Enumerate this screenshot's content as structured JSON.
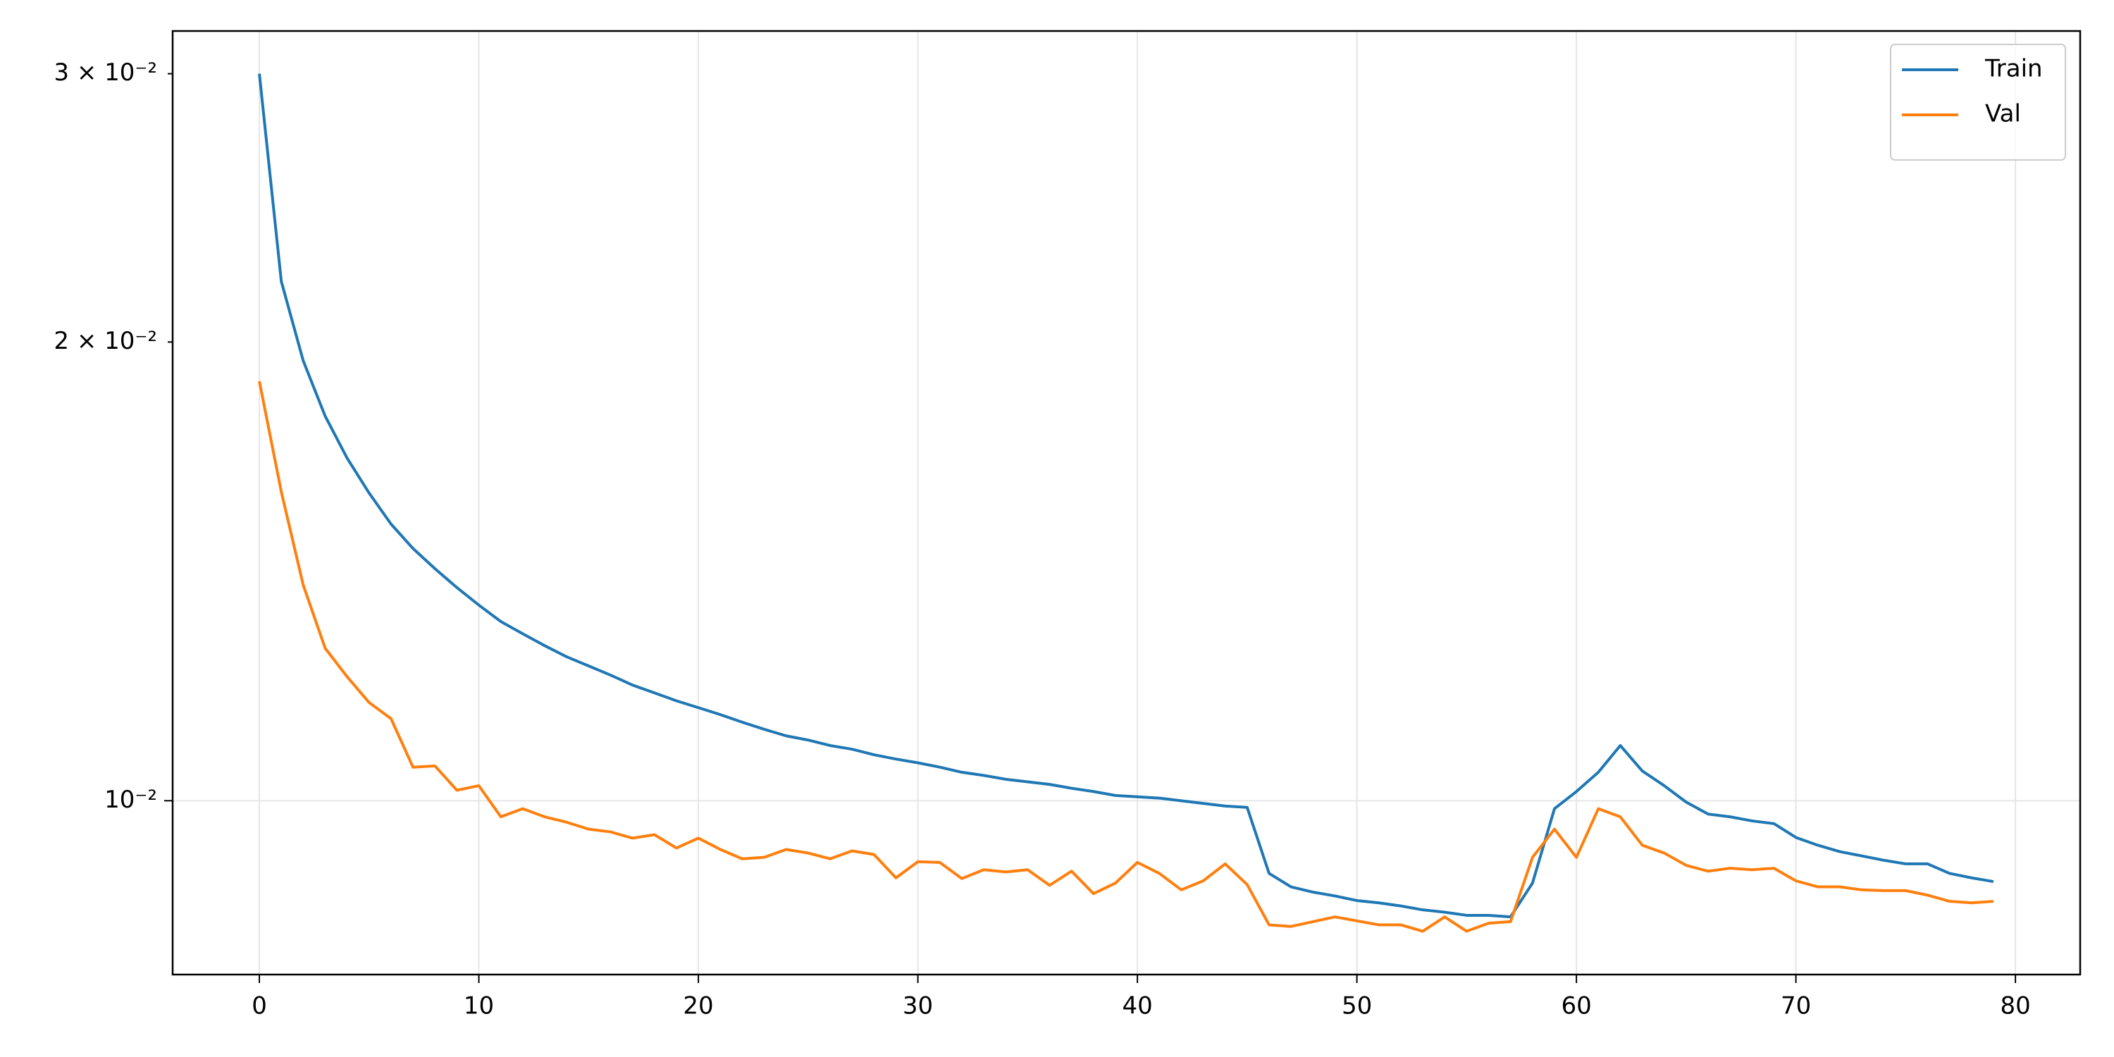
{
  "chart_data": {
    "type": "line",
    "x": [
      0,
      1,
      2,
      3,
      4,
      5,
      6,
      7,
      8,
      9,
      10,
      11,
      12,
      13,
      14,
      15,
      16,
      17,
      18,
      19,
      20,
      21,
      22,
      23,
      24,
      25,
      26,
      27,
      28,
      29,
      30,
      31,
      32,
      33,
      34,
      35,
      36,
      37,
      38,
      39,
      40,
      41,
      42,
      43,
      44,
      45,
      46,
      47,
      48,
      49,
      50,
      51,
      52,
      53,
      54,
      55,
      56,
      57,
      58,
      59,
      60,
      61,
      62,
      63,
      64,
      65,
      66,
      67,
      68,
      69,
      70,
      71,
      72,
      73,
      74,
      75,
      76,
      77,
      78,
      79
    ],
    "series": [
      {
        "name": "Train",
        "color": "#1f77b4",
        "values": [
          0.03,
          0.02192,
          0.01944,
          0.01788,
          0.01678,
          0.01592,
          0.01519,
          0.01464,
          0.0142,
          0.0138,
          0.01344,
          0.01311,
          0.01287,
          0.01264,
          0.01243,
          0.01226,
          0.01209,
          0.01191,
          0.01177,
          0.01163,
          0.01151,
          0.01139,
          0.01126,
          0.01114,
          0.01103,
          0.01096,
          0.01087,
          0.01081,
          0.01072,
          0.01065,
          0.01059,
          0.01052,
          0.01044,
          0.01039,
          0.01033,
          0.01029,
          0.01025,
          0.01019,
          0.01014,
          0.01008,
          0.01006,
          0.01004,
          0.01,
          0.00996,
          0.00992,
          0.0099,
          0.00896,
          0.00878,
          0.00871,
          0.00866,
          0.0086,
          0.00857,
          0.00853,
          0.00848,
          0.00845,
          0.00841,
          0.00841,
          0.00839,
          0.00883,
          0.00988,
          0.01014,
          0.01044,
          0.01087,
          0.01046,
          0.01023,
          0.00998,
          0.0098,
          0.00976,
          0.0097,
          0.00966,
          0.00946,
          0.00935,
          0.00926,
          0.0092,
          0.00914,
          0.00909,
          0.00909,
          0.00896,
          0.0089,
          0.00885
        ]
      },
      {
        "name": "Val",
        "color": "#ff7f0e",
        "values": [
          0.01885,
          0.01595,
          0.01385,
          0.01259,
          0.01206,
          0.0116,
          0.01132,
          0.01052,
          0.01054,
          0.01016,
          0.01023,
          0.00976,
          0.00988,
          0.00976,
          0.00968,
          0.00958,
          0.00954,
          0.00945,
          0.0095,
          0.00931,
          0.00945,
          0.00929,
          0.00916,
          0.00918,
          0.00929,
          0.00924,
          0.00916,
          0.00927,
          0.00922,
          0.0089,
          0.00912,
          0.00911,
          0.00889,
          0.00901,
          0.00898,
          0.00901,
          0.0088,
          0.00899,
          0.00869,
          0.00883,
          0.00911,
          0.00896,
          0.00874,
          0.00886,
          0.00909,
          0.00881,
          0.00829,
          0.00827,
          0.00833,
          0.00839,
          0.00834,
          0.00829,
          0.00829,
          0.00821,
          0.00839,
          0.00821,
          0.00831,
          0.00833,
          0.00918,
          0.00958,
          0.00918,
          0.00988,
          0.00976,
          0.00935,
          0.00924,
          0.00907,
          0.00899,
          0.00903,
          0.00901,
          0.00903,
          0.00886,
          0.00878,
          0.00878,
          0.00874,
          0.00873,
          0.00873,
          0.00867,
          0.00859,
          0.00857,
          0.00859
        ]
      }
    ],
    "xlim": [
      -3.95,
      82.95
    ],
    "xticks": [
      0,
      10,
      20,
      30,
      40,
      50,
      60,
      70,
      80
    ],
    "ylim": [
      0.00769,
      0.032
    ],
    "yscale": "log",
    "yticks": [
      {
        "value": 0.01,
        "label": "10⁻²"
      }
    ],
    "yminorticks": [
      {
        "value": 0.02,
        "label": "2 × 10⁻²"
      },
      {
        "value": 0.03,
        "label": "3 × 10⁻²"
      }
    ],
    "grid": true,
    "legend": "upper right"
  }
}
